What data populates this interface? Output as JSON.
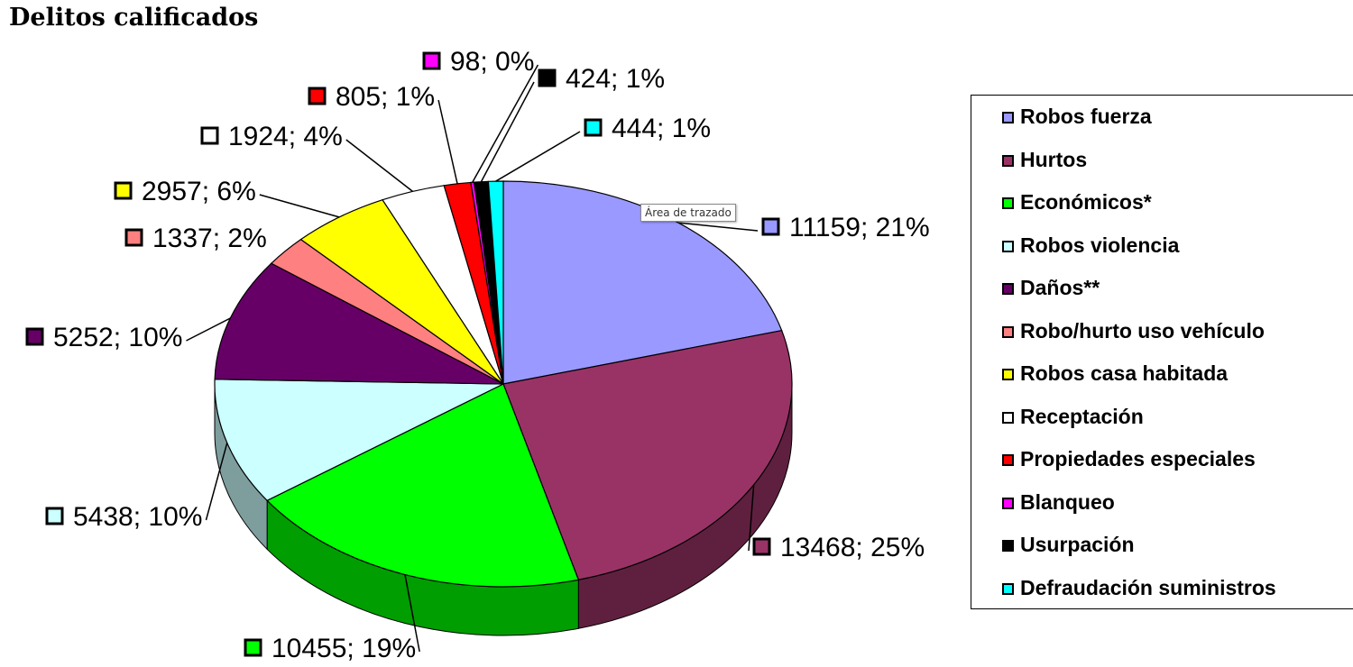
{
  "title": "Delitos calificados",
  "tooltip": "Área de trazado",
  "chart_data": {
    "type": "pie",
    "title": "Delitos calificados",
    "legend_position": "right",
    "three_d": true,
    "slices": [
      {
        "name": "Robos fuerza",
        "value": 11159,
        "label": "11159; 21%",
        "color": "#9999ff"
      },
      {
        "name": "Hurtos",
        "value": 13468,
        "label": "13468; 25%",
        "color": "#993366"
      },
      {
        "name": "Económicos*",
        "value": 10455,
        "label": "10455; 19%",
        "color": "#00ff00"
      },
      {
        "name": "Robos violencia",
        "value": 5438,
        "label": "5438; 10%",
        "color": "#ccffff"
      },
      {
        "name": "Daños**",
        "value": 5252,
        "label": "5252; 10%",
        "color": "#660066"
      },
      {
        "name": "Robo/hurto uso vehículo",
        "value": 1337,
        "label": "1337; 2%",
        "color": "#ff8080"
      },
      {
        "name": "Robos casa habitada",
        "value": 2957,
        "label": "2957; 6%",
        "color": "#ffff00"
      },
      {
        "name": "Receptación",
        "value": 1924,
        "label": "1924; 4%",
        "color": "#ffffff"
      },
      {
        "name": "Propiedades especiales",
        "value": 805,
        "label": "805; 1%",
        "color": "#ff0000"
      },
      {
        "name": "Blanqueo",
        "value": 98,
        "label": "98; 0%",
        "color": "#ff00ff"
      },
      {
        "name": "Usurpación",
        "value": 424,
        "label": "424; 1%",
        "color": "#000000"
      },
      {
        "name": "Defraudación suministros",
        "value": 444,
        "label": "444; 1%",
        "color": "#00ffff"
      }
    ]
  }
}
